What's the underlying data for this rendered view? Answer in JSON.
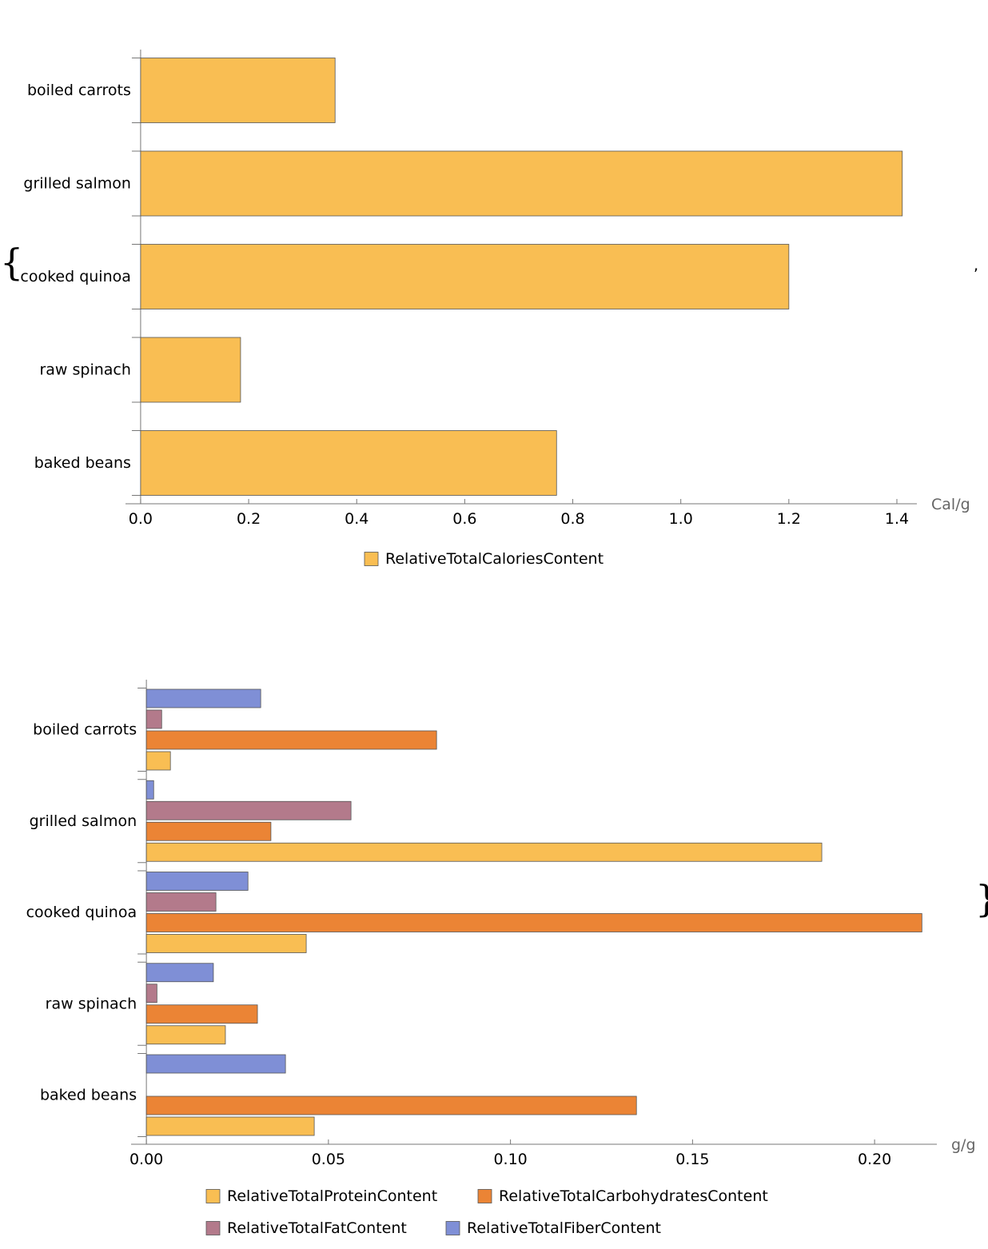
{
  "delimiters": {
    "open": "{",
    "separator": ",",
    "close": "}"
  },
  "chart_data": [
    {
      "type": "bar",
      "orientation": "horizontal",
      "categories": [
        "boiled carrots",
        "grilled salmon",
        "cooked quinoa",
        "raw spinach",
        "baked beans"
      ],
      "series": [
        {
          "name": "RelativeTotalCaloriesContent",
          "color": "#f9be53",
          "values": [
            0.36,
            1.41,
            1.2,
            0.185,
            0.77
          ]
        }
      ],
      "xlim": [
        -0.028,
        1.437
      ],
      "xticks": [
        {
          "value": 0,
          "label": "0.0"
        },
        0.2,
        0.4,
        0.6,
        0.8,
        {
          "value": 1,
          "label": "1.0"
        },
        1.2,
        1.4
      ],
      "xlabel": "Cal/g"
    },
    {
      "type": "bar",
      "orientation": "horizontal",
      "categories": [
        "boiled carrots",
        "grilled salmon",
        "cooked quinoa",
        "raw spinach",
        "baked beans"
      ],
      "series": [
        {
          "name": "RelativeTotalProteinContent",
          "color": "#f9be53",
          "values": [
            0.0066,
            0.1855,
            0.0439,
            0.0217,
            0.0461
          ]
        },
        {
          "name": "RelativeTotalCarbohydratesContent",
          "color": "#eb8435",
          "values": [
            0.0797,
            0.0342,
            0.213,
            0.0305,
            0.1346
          ]
        },
        {
          "name": "RelativeTotalFatContent",
          "color": "#b37a8b",
          "values": [
            0.0042,
            0.0562,
            0.0191,
            0.0029,
            0
          ]
        },
        {
          "name": "RelativeTotalFiberContent",
          "color": "#7f8fd6",
          "values": [
            0.0314,
            0.002,
            0.0279,
            0.0184,
            0.0382
          ]
        }
      ],
      "xlim": [
        -0.0042,
        0.2171
      ],
      "xticks": [
        {
          "value": 0,
          "label": "0.00"
        },
        0.05,
        {
          "value": 0.1,
          "label": "0.10"
        },
        0.15,
        {
          "value": 0.2,
          "label": "0.20"
        }
      ],
      "xlabel": "g/g"
    }
  ]
}
